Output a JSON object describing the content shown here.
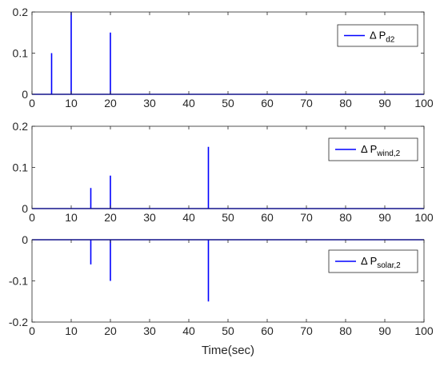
{
  "chart_data": [
    {
      "type": "line",
      "xlim": [
        0,
        100
      ],
      "ylim": [
        0,
        0.2
      ],
      "xticks": [
        "0",
        "10",
        "20",
        "30",
        "40",
        "50",
        "60",
        "70",
        "80",
        "90",
        "100"
      ],
      "yticks": [
        "0",
        "0.1",
        "0.2"
      ],
      "legend": {
        "main": "Δ P",
        "sub": "d2",
        "position": "top-right"
      },
      "series": [
        {
          "color": "#0000ff",
          "x": [
            0,
            5,
            5,
            5,
            10,
            10,
            10,
            20,
            20,
            20,
            100
          ],
          "y": [
            0,
            0,
            0.1,
            0,
            0,
            0.2,
            0,
            0,
            0.15,
            0,
            0
          ]
        }
      ]
    },
    {
      "type": "line",
      "xlim": [
        0,
        100
      ],
      "ylim": [
        0,
        0.2
      ],
      "xticks": [
        "0",
        "10",
        "20",
        "30",
        "40",
        "50",
        "60",
        "70",
        "80",
        "90",
        "100"
      ],
      "yticks": [
        "0",
        "0.1",
        "0.2"
      ],
      "legend": {
        "main": "Δ P",
        "sub": "wind,2",
        "position": "top-right"
      },
      "series": [
        {
          "color": "#0000ff",
          "x": [
            0,
            15,
            15,
            15,
            20,
            20,
            20,
            45,
            45,
            45,
            100
          ],
          "y": [
            0,
            0,
            0.05,
            0,
            0,
            0.08,
            0,
            0,
            0.15,
            0,
            0
          ]
        }
      ]
    },
    {
      "type": "line",
      "xlim": [
        0,
        100
      ],
      "ylim": [
        -0.2,
        0
      ],
      "xticks": [
        "0",
        "10",
        "20",
        "30",
        "40",
        "50",
        "60",
        "70",
        "80",
        "90",
        "100"
      ],
      "yticks": [
        "0",
        "-0.1",
        "-0.2"
      ],
      "xlabel": "Time(sec)",
      "legend": {
        "main": "Δ P",
        "sub": "solar,2",
        "position": "top-right"
      },
      "series": [
        {
          "color": "#0000ff",
          "x": [
            0,
            15,
            15,
            15,
            20,
            20,
            20,
            45,
            45,
            45,
            100
          ],
          "y": [
            0,
            0,
            -0.06,
            0,
            0,
            -0.1,
            0,
            0,
            -0.15,
            0,
            0
          ]
        }
      ]
    }
  ]
}
